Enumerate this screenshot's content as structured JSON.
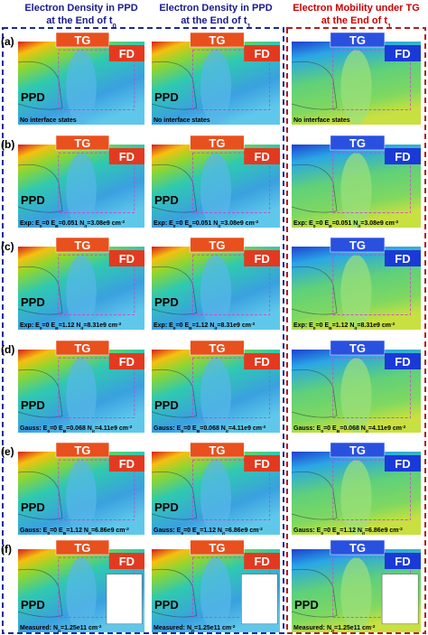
{
  "columns": [
    {
      "color": "#1a1a8c",
      "title": [
        [
          {
            "text": "Electron Density in PPD"
          }
        ],
        [
          {
            "text": "at the End of t"
          },
          {
            "text": "0",
            "style": "sub"
          }
        ]
      ]
    },
    {
      "color": "#1a1a8c",
      "title": [
        [
          {
            "text": "Electron Density in PPD"
          }
        ],
        [
          {
            "text": "at the End of t"
          },
          {
            "text": "1",
            "style": "sub"
          }
        ]
      ]
    },
    {
      "color": "#cc0000",
      "title": [
        [
          {
            "text": "Electron Mobility under TG"
          }
        ],
        [
          {
            "text": "at the End of t"
          },
          {
            "text": "1",
            "style": "sub"
          }
        ]
      ]
    }
  ],
  "labels": {
    "tg": "TG",
    "fd": "FD",
    "ppd": "PPD"
  },
  "rows": [
    {
      "label": "(a)",
      "ppd": [
        true,
        true,
        false
      ],
      "caption": [
        {
          "text": "No interface states"
        }
      ]
    },
    {
      "label": "(b)",
      "ppd": [
        true,
        true,
        false
      ],
      "caption": [
        {
          "text": "Exp: E"
        },
        {
          "text": "0",
          "style": "sub"
        },
        {
          "text": "=0  E"
        },
        {
          "text": "B",
          "style": "sub"
        },
        {
          "text": "=0.051 N"
        },
        {
          "text": "it",
          "style": "sub"
        },
        {
          "text": "=3.08e9 cm"
        },
        {
          "text": "-2",
          "style": "sup"
        }
      ]
    },
    {
      "label": "(c)",
      "ppd": [
        true,
        true,
        false
      ],
      "caption": [
        {
          "text": "Exp: E"
        },
        {
          "text": "0",
          "style": "sub"
        },
        {
          "text": "=0  E"
        },
        {
          "text": "B",
          "style": "sub"
        },
        {
          "text": "=1.12 N"
        },
        {
          "text": "it",
          "style": "sub"
        },
        {
          "text": "=8.31e9 cm"
        },
        {
          "text": "-2",
          "style": "sup"
        }
      ]
    },
    {
      "label": "(d)",
      "ppd": [
        true,
        true,
        false
      ],
      "caption": [
        {
          "text": "Gauss: E"
        },
        {
          "text": "0",
          "style": "sub"
        },
        {
          "text": "=0  E"
        },
        {
          "text": "B",
          "style": "sub"
        },
        {
          "text": "=0.068 N"
        },
        {
          "text": "it",
          "style": "sub"
        },
        {
          "text": "=4.11e9 cm"
        },
        {
          "text": "-2",
          "style": "sup"
        }
      ]
    },
    {
      "label": "(e)",
      "ppd": [
        true,
        true,
        false
      ],
      "caption": [
        {
          "text": "Gauss: E"
        },
        {
          "text": "0",
          "style": "sub"
        },
        {
          "text": "=0  E"
        },
        {
          "text": "B",
          "style": "sub"
        },
        {
          "text": "=1.12 N"
        },
        {
          "text": "it",
          "style": "sub"
        },
        {
          "text": "=6.86e9 cm"
        },
        {
          "text": "-2",
          "style": "sup"
        }
      ]
    },
    {
      "label": "(f)",
      "ppd": [
        true,
        true,
        true
      ],
      "caption": [
        {
          "text": "Measured: N"
        },
        {
          "text": "it",
          "style": "sub"
        },
        {
          "text": "=1.25e11 cm"
        },
        {
          "text": "-2",
          "style": "sup"
        }
      ]
    }
  ]
}
